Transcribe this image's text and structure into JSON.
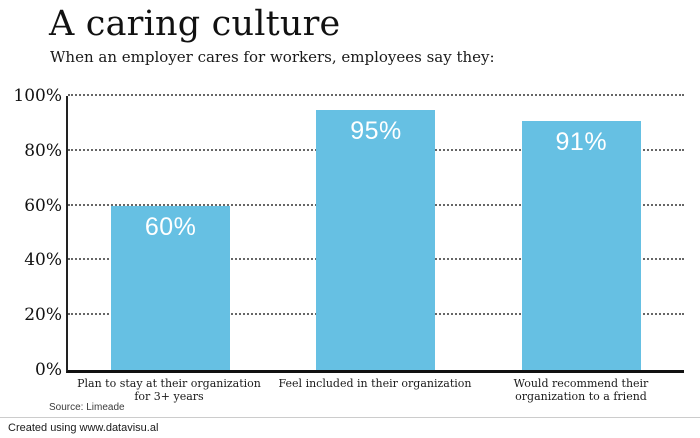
{
  "header": {
    "title": "A caring culture",
    "subtitle": "When an employer cares for workers, employees say they:"
  },
  "chart_data": {
    "type": "bar",
    "categories": [
      "Plan to stay at their organization for 3+ years",
      "Feel included in their organization",
      "Would recommend their organization to a friend"
    ],
    "values": [
      60,
      95,
      91
    ],
    "value_labels": [
      "60%",
      "95%",
      "91%"
    ],
    "ylim": [
      0,
      100
    ],
    "yticks": [
      "0%",
      "20%",
      "40%",
      "60%",
      "80%",
      "100%"
    ],
    "grid": "horizontal dotted gridlines",
    "legend": "none",
    "bar_color": "#66c0e3",
    "value_label_color": "#ffffff"
  },
  "source_note": "Source: Limeade",
  "footer": {
    "credit": "Created using www.datavisu.al"
  },
  "colors": {
    "background": "#ffffff",
    "bar": "#66c0e3",
    "axis": "#1a1a1a",
    "gridline": "#666666",
    "text": "#111111",
    "divider": "#cccccc"
  }
}
